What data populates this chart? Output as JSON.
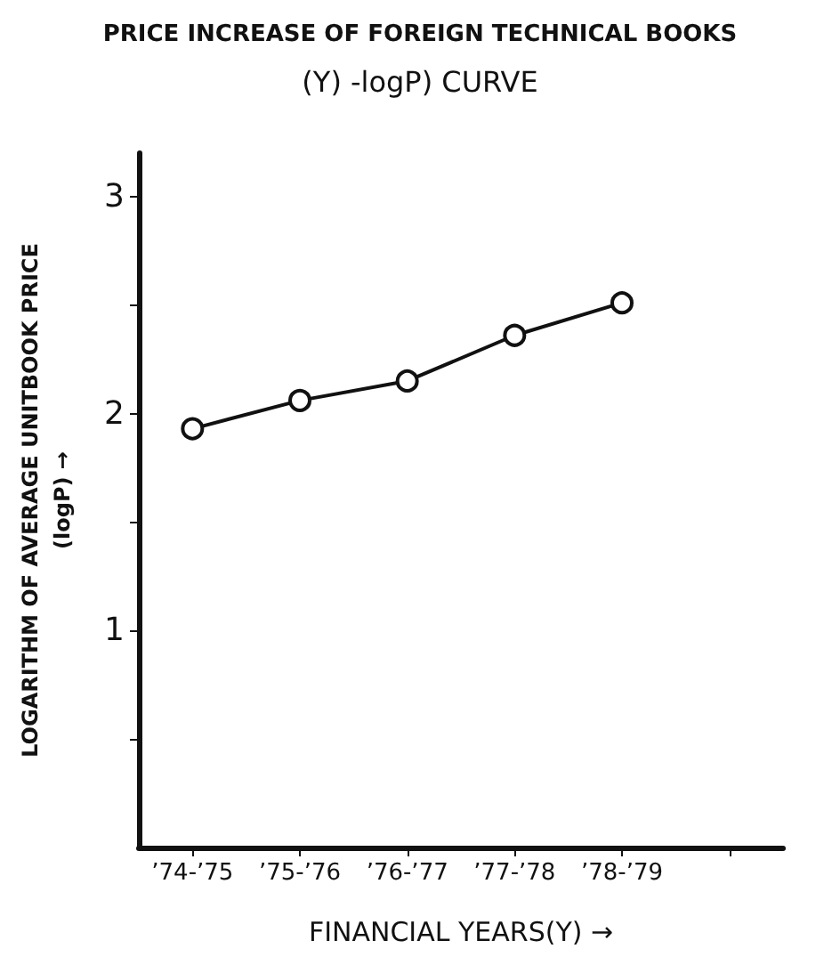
{
  "chart_data": {
    "type": "line",
    "title": "PRICE INCREASE OF FOREIGN TECHNICAL BOOKS",
    "subtitle": "(Y) -logP) CURVE",
    "xlabel": "FINANCIAL YEARS(Y) →",
    "ylabel": "LOGARITHM OF AVERAGE UNITBOOK PRICE\n(logP) →",
    "categories": [
      "’74-’75",
      "’75-’76",
      "’76-’77",
      "’77-’78",
      "’78-’79",
      null
    ],
    "series": [
      {
        "color": "#111111",
        "values": [
          1.93,
          2.06,
          2.15,
          2.36,
          2.51,
          null
        ]
      }
    ],
    "ylim": [
      0,
      3.2
    ],
    "yticks": [
      {
        "value": 0.5,
        "label": null
      },
      1,
      {
        "value": 1.5,
        "label": null
      },
      2,
      {
        "value": 2.5,
        "label": null
      },
      3
    ],
    "grid": false,
    "marker": "circle",
    "line_style": "solid"
  }
}
